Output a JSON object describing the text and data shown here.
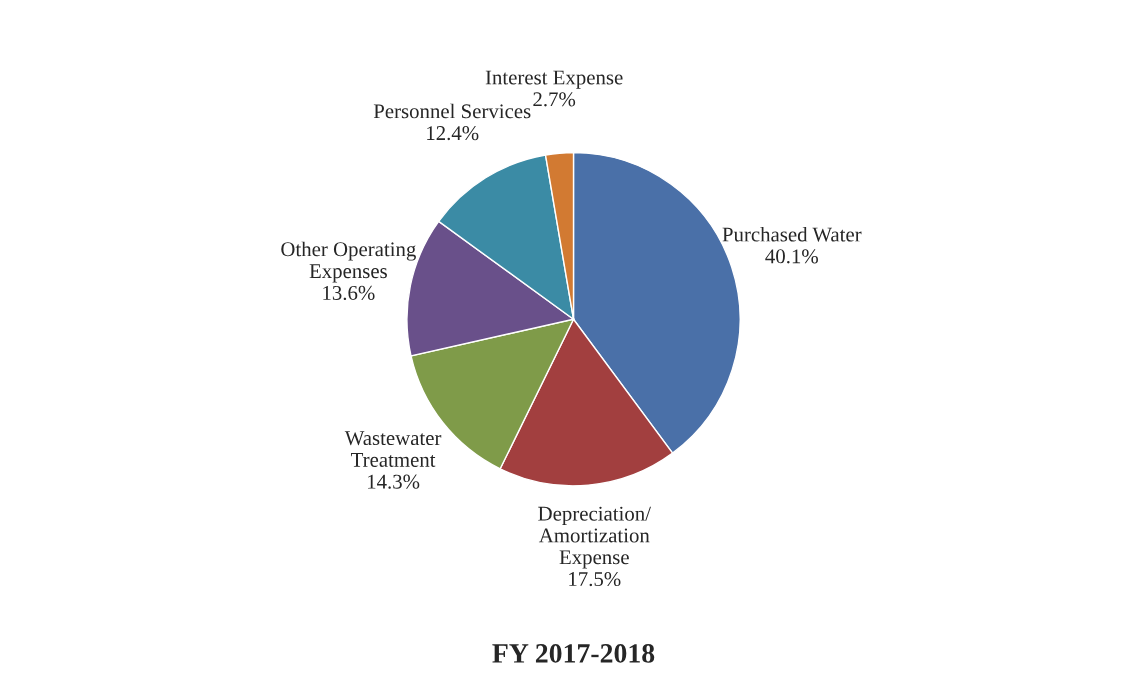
{
  "chart_data": {
    "type": "pie",
    "title": "FY 2017-2018",
    "categories": [
      "Purchased Water",
      "Depreciation/\nAmortization\nExpense",
      "Wastewater\nTreatment",
      "Other Operating\nExpenses",
      "Personnel Services",
      "Interest Expense"
    ],
    "values": [
      40.1,
      17.5,
      14.3,
      13.6,
      12.4,
      2.7
    ],
    "value_labels": [
      "40.1%",
      "17.5%",
      "14.3%",
      "13.6%",
      "12.4%",
      "2.7%"
    ],
    "colors": [
      "#4a70a8",
      "#a23f3f",
      "#7f9b49",
      "#69508a",
      "#3b8ba5",
      "#d27a32"
    ],
    "legend": false
  }
}
